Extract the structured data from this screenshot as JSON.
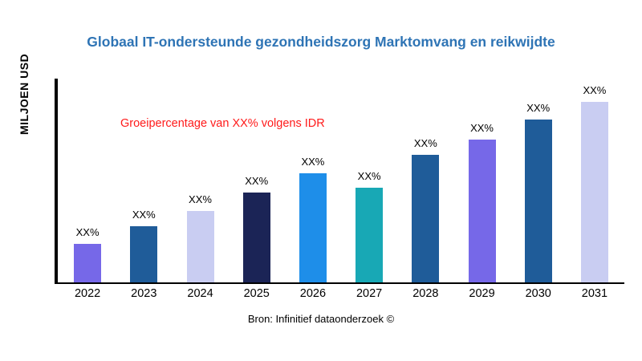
{
  "title": "Globaal IT-ondersteunde gezondheidszorg Marktomvang en reikwijdte",
  "ylabel": "MILJOEN USD",
  "annotation": "Groeipercentage van XX% volgens IDR",
  "source": "Bron: Infinitief dataonderzoek ©",
  "colors": {
    "title": "#2E74B5",
    "annotation": "#FF1A1A",
    "axis": "#000000",
    "background": "#FFFFFF"
  },
  "chart_data": {
    "type": "bar",
    "title": "Globaal IT-ondersteunde gezondheidszorg Marktomvang en reikwijdte",
    "xlabel": "",
    "ylabel": "MILJOEN USD",
    "categories": [
      "2022",
      "2023",
      "2024",
      "2025",
      "2026",
      "2027",
      "2028",
      "2029",
      "2030",
      "2031"
    ],
    "values": [
      50,
      72,
      92,
      116,
      140,
      122,
      164,
      184,
      209,
      232
    ],
    "bar_labels": [
      "XX%",
      "XX%",
      "XX%",
      "XX%",
      "XX%",
      "XX%",
      "XX%",
      "XX%",
      "XX%",
      "XX%"
    ],
    "bar_colors": [
      "#7668E8",
      "#1F5C99",
      "#C9CDF2",
      "#1B2456",
      "#1E8EE9",
      "#18A8B5",
      "#1F5C99",
      "#7668E8",
      "#1F5C99",
      "#C9CDF2"
    ],
    "ylim": [
      0,
      260
    ],
    "grid": false,
    "legend": "none",
    "annotation": "Groeipercentage van XX% volgens IDR",
    "value_note": "Values are placeholder heights in arbitrary units estimated from bar pixel heights; on-screen data labels show XX% only"
  }
}
